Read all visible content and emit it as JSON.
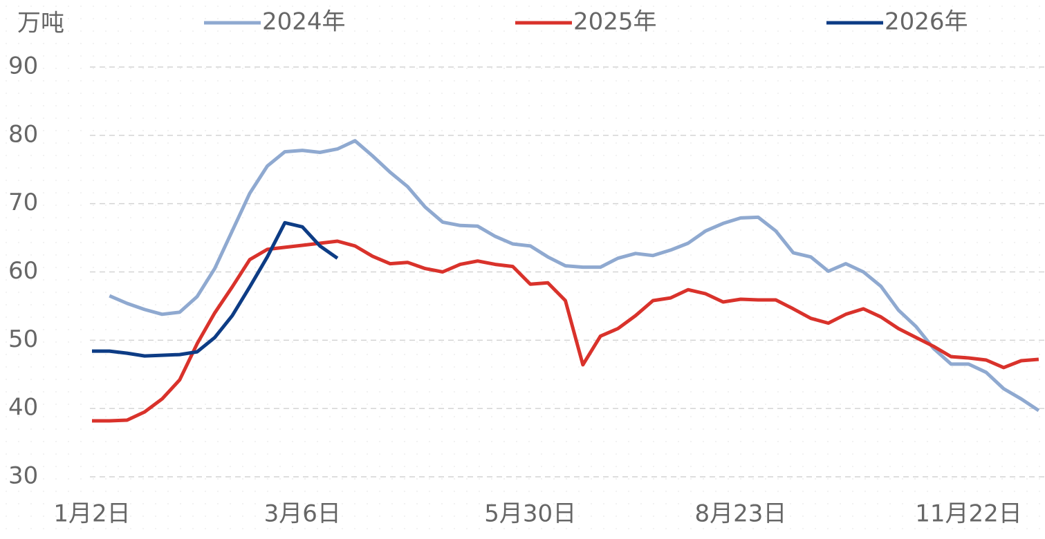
{
  "chart_data": {
    "type": "line",
    "y_unit": "万吨",
    "categories": [
      "1月2日",
      null,
      null,
      null,
      null,
      null,
      null,
      null,
      null,
      null,
      null,
      null,
      "3月6日",
      null,
      null,
      null,
      null,
      null,
      null,
      null,
      null,
      null,
      null,
      null,
      null,
      "5月30日",
      null,
      null,
      null,
      null,
      null,
      null,
      null,
      null,
      null,
      null,
      null,
      "8月23日",
      null,
      null,
      null,
      null,
      null,
      null,
      null,
      null,
      null,
      null,
      null,
      null,
      "11月22日",
      null,
      null,
      null,
      null
    ],
    "series": [
      {
        "name": "2024年",
        "color": "#8fa9d0",
        "values": [
          null,
          56.5,
          55.4,
          54.5,
          53.8,
          54.1,
          56.4,
          60.5,
          66,
          71.5,
          75.5,
          77.6,
          77.8,
          77.5,
          78,
          79.2,
          77,
          74.6,
          72.5,
          69.5,
          67.3,
          66.8,
          66.7,
          65.2,
          64.1,
          63.8,
          62.2,
          60.9,
          60.7,
          60.7,
          62,
          62.7,
          62.4,
          63.2,
          64.2,
          66,
          67.1,
          67.9,
          68,
          66,
          62.8,
          62.2,
          60.1,
          61.2,
          60,
          57.9,
          54.4,
          52,
          48.8,
          46.5,
          46.5,
          45.3,
          42.9,
          41.4,
          39.7
        ]
      },
      {
        "name": "2025年",
        "color": "#d9322b",
        "values": [
          38.2,
          38.2,
          38.3,
          39.5,
          41.4,
          44.2,
          49.5,
          54,
          57.8,
          61.8,
          63.3,
          63.6,
          63.9,
          64.2,
          64.5,
          63.8,
          62.3,
          61.2,
          61.4,
          60.5,
          60,
          61.1,
          61.6,
          61.1,
          60.8,
          58.2,
          58.4,
          55.8,
          46.4,
          50.6,
          51.7,
          53.6,
          55.8,
          56.2,
          57.4,
          56.8,
          55.6,
          56,
          55.9,
          55.9,
          54.6,
          53.2,
          52.5,
          53.8,
          54.6,
          53.4,
          51.7,
          50.4,
          49.1,
          47.6,
          47.4,
          47.1,
          46,
          47,
          47.2
        ]
      },
      {
        "name": "2026年",
        "color": "#0d3c85",
        "values": [
          48.4,
          48.4,
          48.1,
          47.7,
          47.8,
          47.9,
          48.3,
          50.4,
          53.6,
          57.8,
          62.2,
          67.2,
          66.6,
          63.8,
          62,
          null,
          null,
          null,
          null,
          null,
          null,
          null,
          null,
          null,
          null,
          null,
          null,
          null,
          null,
          null,
          null,
          null,
          null,
          null,
          null,
          null,
          null,
          null,
          null,
          null,
          null,
          null,
          null,
          null,
          null,
          null,
          null,
          null,
          null,
          null,
          null,
          null,
          null,
          null,
          null
        ]
      }
    ],
    "ylim": [
      30,
      90
    ],
    "yticks": [
      30,
      40,
      50,
      60,
      70,
      80,
      90
    ],
    "grid": true,
    "legend": "top"
  }
}
